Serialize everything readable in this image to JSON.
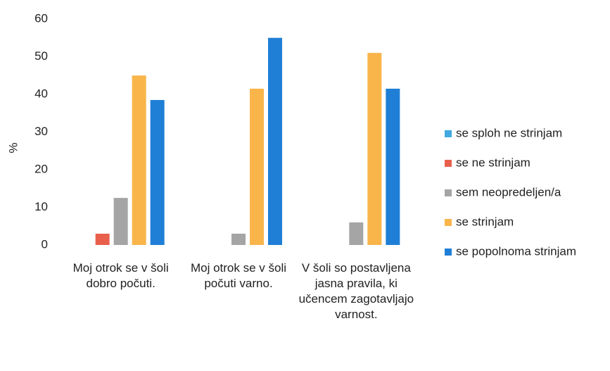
{
  "chart_data": {
    "type": "bar",
    "y_label": "%",
    "categories": [
      "Moj otrok se v šoli dobro počuti.",
      "Moj otrok se v šoli počuti varno.",
      "V šoli so postavljena jasna pravila, ki učencem zagotavljajo varnost."
    ],
    "series": [
      {
        "name": "se sploh ne strinjam",
        "color": "#41a8e0",
        "values": [
          0,
          0,
          0
        ]
      },
      {
        "name": "se ne strinjam",
        "color": "#e8604c",
        "values": [
          3,
          0,
          0
        ]
      },
      {
        "name": "sem neopredeljen/a",
        "color": "#a5a5a5",
        "values": [
          12.5,
          3,
          6
        ]
      },
      {
        "name": "se strinjam",
        "color": "#f9b54a",
        "values": [
          45,
          41.5,
          51
        ]
      },
      {
        "name": "se popolnoma strinjam",
        "color": "#1f7fd6",
        "values": [
          38.5,
          55,
          41.5
        ]
      }
    ],
    "ylim": [
      0,
      60
    ],
    "yticks": [
      0,
      10,
      20,
      30,
      40,
      50,
      60
    ],
    "grid": false,
    "legend": "right"
  }
}
